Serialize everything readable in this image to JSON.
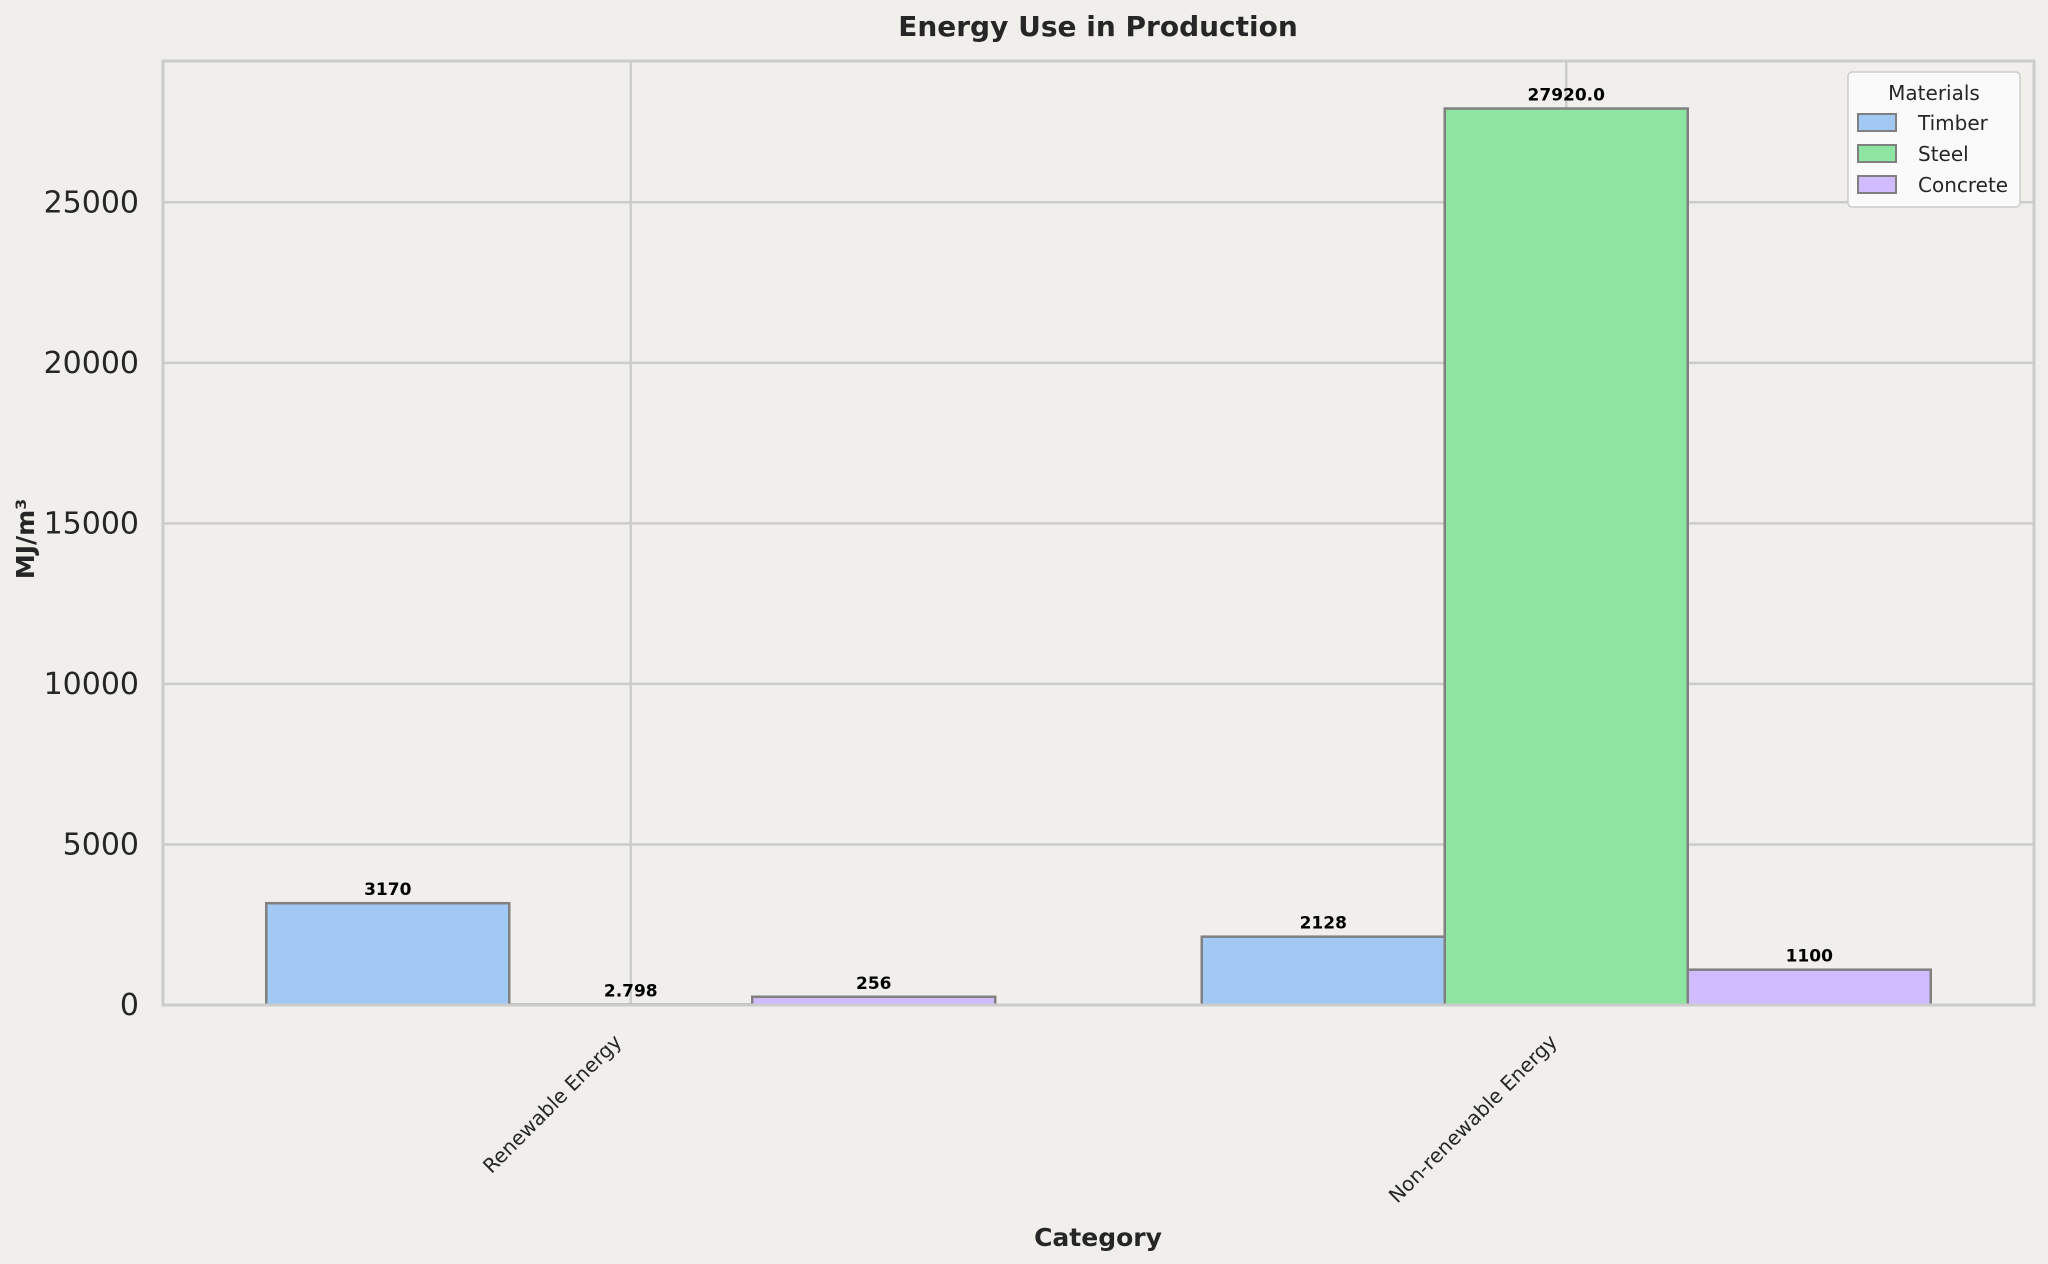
{
  "chart_data": {
    "type": "bar",
    "title": "Energy Use in Production",
    "xlabel": "Category",
    "ylabel": "MJ/m³",
    "categories": [
      "Renewable Energy",
      "Non-renewable Energy"
    ],
    "series": [
      {
        "name": "Timber",
        "values": [
          3170,
          2128
        ],
        "labels": [
          "3170",
          "2128"
        ],
        "color": "#a1c9f4"
      },
      {
        "name": "Steel",
        "values": [
          2.798,
          27920.0
        ],
        "labels": [
          "2.798",
          "27920.0"
        ],
        "color": "#8de5a1"
      },
      {
        "name": "Concrete",
        "values": [
          256,
          1100
        ],
        "labels": [
          "256",
          "1100"
        ],
        "color": "#d0bbff"
      }
    ],
    "ylim": [
      0,
      29400
    ],
    "yticks": [
      0,
      5000,
      10000,
      15000,
      20000,
      25000
    ],
    "ytick_labels": [
      "0",
      "5000",
      "10000",
      "15000",
      "20000",
      "25000"
    ],
    "grid": true,
    "legend": {
      "title": "Materials",
      "position": "top-right"
    },
    "colors": {
      "background": "#f0efeb",
      "grid": "#cccccc",
      "bar_edge": "#808080"
    }
  }
}
